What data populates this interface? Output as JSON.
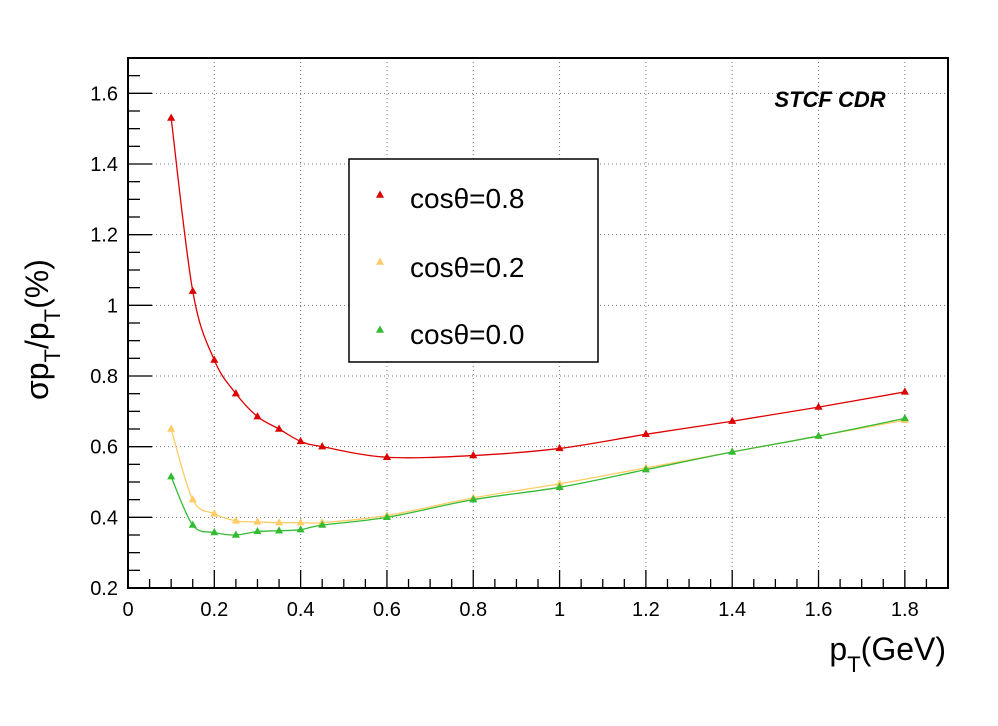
{
  "chart_data": {
    "type": "line",
    "annotation": "STCF CDR",
    "xlabel": {
      "main": "p",
      "sub": "T",
      "rest": "(GeV)"
    },
    "ylabel": {
      "sigma": "σ",
      "p1": "p",
      "sub1": "T",
      "slash": "/p",
      "sub2": "T",
      "rest": "(%)"
    },
    "xlim": [
      0,
      1.9
    ],
    "ylim": [
      0.2,
      1.7
    ],
    "x_ticks": [
      0,
      0.2,
      0.4,
      0.6,
      0.8,
      1,
      1.2,
      1.4,
      1.6,
      1.8
    ],
    "x_tick_labels": [
      "0",
      "0.2",
      "0.4",
      "0.6",
      "0.8",
      "1",
      "1.2",
      "1.4",
      "1.6",
      "1.8"
    ],
    "y_ticks": [
      0.2,
      0.4,
      0.6,
      0.8,
      1.0,
      1.2,
      1.4,
      1.6
    ],
    "y_tick_labels": [
      "0.2",
      "0.4",
      "0.6",
      "0.8",
      "1",
      "1.2",
      "1.4",
      "1.6"
    ],
    "grid": true,
    "legend_position": "upper-center",
    "marker": "triangle",
    "series": [
      {
        "name": "cosθ=0.8",
        "color": "#dd0000",
        "x": [
          0.1,
          0.15,
          0.2,
          0.25,
          0.3,
          0.35,
          0.4,
          0.45,
          0.6,
          0.8,
          1.0,
          1.2,
          1.4,
          1.6,
          1.8
        ],
        "y": [
          1.53,
          1.04,
          0.845,
          0.75,
          0.685,
          0.65,
          0.615,
          0.6,
          0.57,
          0.575,
          0.595,
          0.635,
          0.672,
          0.712,
          0.755
        ]
      },
      {
        "name": "cosθ=0.2",
        "color": "#ffcc66",
        "x": [
          0.1,
          0.15,
          0.2,
          0.25,
          0.3,
          0.35,
          0.4,
          0.45,
          0.6,
          0.8,
          1.0,
          1.2,
          1.4,
          1.6,
          1.8
        ],
        "y": [
          0.65,
          0.45,
          0.41,
          0.39,
          0.387,
          0.385,
          0.385,
          0.385,
          0.405,
          0.455,
          0.495,
          0.54,
          0.585,
          0.63,
          0.675
        ]
      },
      {
        "name": "cosθ=0.0",
        "color": "#33bb33",
        "x": [
          0.1,
          0.15,
          0.2,
          0.25,
          0.3,
          0.35,
          0.4,
          0.45,
          0.6,
          0.8,
          1.0,
          1.2,
          1.4,
          1.6,
          1.8
        ],
        "y": [
          0.515,
          0.378,
          0.357,
          0.35,
          0.36,
          0.362,
          0.365,
          0.378,
          0.4,
          0.45,
          0.485,
          0.535,
          0.585,
          0.63,
          0.68
        ]
      }
    ]
  }
}
